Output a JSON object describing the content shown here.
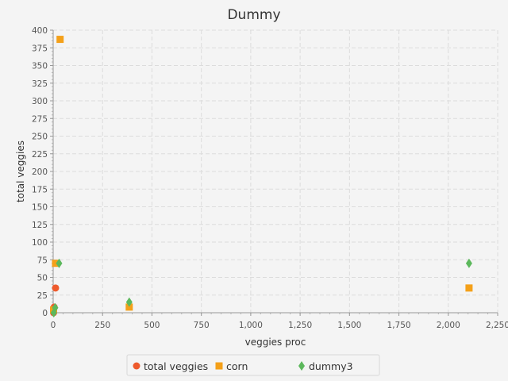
{
  "chart_data": {
    "type": "scatter",
    "title": "Dummy",
    "xlabel": "veggies proc",
    "ylabel": "total veggies",
    "xlim": [
      0,
      2250
    ],
    "ylim": [
      0,
      400
    ],
    "x_ticks": [
      0,
      250,
      500,
      750,
      1000,
      1250,
      1500,
      1750,
      2000,
      2250
    ],
    "x_tick_labels": [
      "0",
      "250",
      "500",
      "750",
      "1,000",
      "1,250",
      "1,500",
      "1,750",
      "2,000",
      "2,250"
    ],
    "y_ticks": [
      0,
      25,
      50,
      75,
      100,
      125,
      150,
      175,
      200,
      225,
      250,
      275,
      300,
      325,
      350,
      375,
      400
    ],
    "y_tick_labels": [
      "0",
      "25",
      "50",
      "75",
      "100",
      "125",
      "150",
      "175",
      "200",
      "225",
      "250",
      "275",
      "300",
      "325",
      "350",
      "375",
      "400"
    ],
    "grid": true,
    "legend": "bottom",
    "series": [
      {
        "name": "total veggies",
        "color": "#ee5a2c",
        "marker": "circle",
        "points": [
          [
            2,
            0
          ],
          [
            5,
            8
          ],
          [
            12,
            35
          ]
        ]
      },
      {
        "name": "corn",
        "color": "#f4a019",
        "marker": "square",
        "points": [
          [
            2,
            4
          ],
          [
            12,
            70
          ],
          [
            35,
            387
          ],
          [
            385,
            8
          ],
          [
            2105,
            35
          ]
        ]
      },
      {
        "name": "dummy3",
        "color": "#5cb85c",
        "marker": "diamond",
        "points": [
          [
            3,
            0
          ],
          [
            10,
            7
          ],
          [
            30,
            70
          ],
          [
            385,
            15
          ],
          [
            2105,
            70
          ]
        ]
      }
    ]
  }
}
